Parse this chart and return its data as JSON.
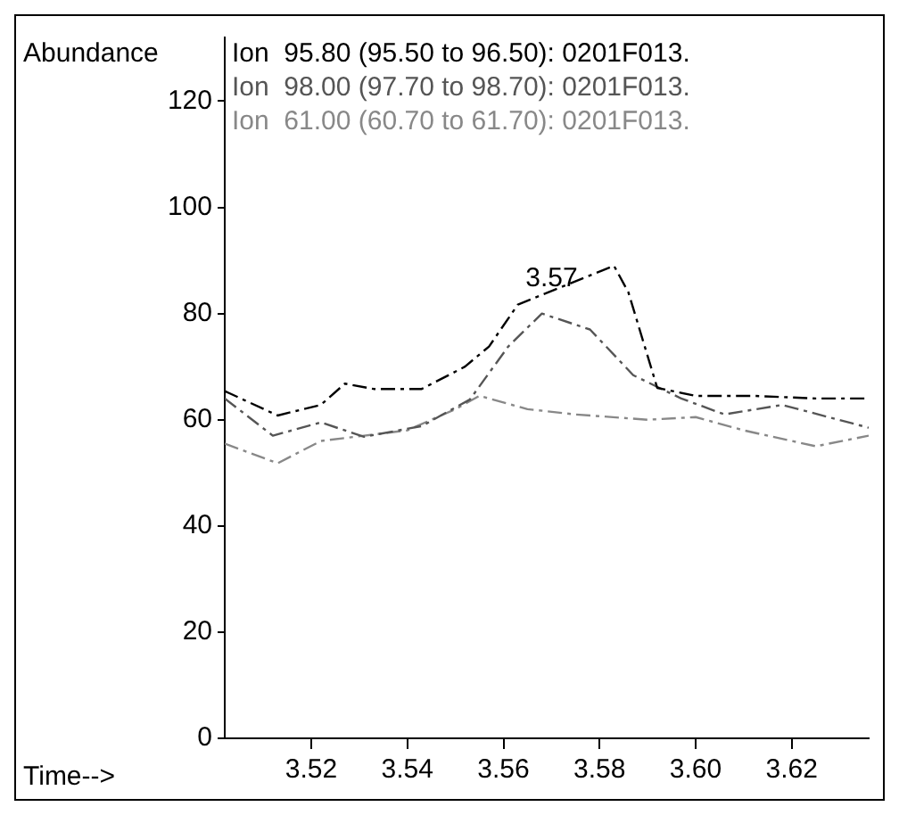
{
  "chart_data": {
    "type": "line",
    "ylabel": "Abundance",
    "xlabel": "Time-->",
    "xlim": [
      3.502,
      3.636
    ],
    "ylim": [
      0,
      132
    ],
    "xticks": [
      3.52,
      3.54,
      3.56,
      3.58,
      {
        "value": 3.6,
        "label": "3.60"
      },
      3.62
    ],
    "yticks": [
      0,
      20,
      40,
      60,
      80,
      100,
      120
    ],
    "grid": false,
    "legend": "top",
    "marker": "none",
    "line_style": "dashed",
    "annotations": [
      {
        "text": "3.57",
        "x": 3.57,
        "y": 84
      }
    ],
    "series": [
      {
        "name": "Ion  95.80 (95.50 to 96.50): 0201F013.",
        "color": "#000000",
        "x": [
          3.502,
          3.513,
          3.522,
          3.527,
          3.533,
          3.543,
          3.552,
          3.557,
          3.563,
          3.583,
          3.586,
          3.592,
          3.6,
          3.612,
          3.625,
          3.636
        ],
        "values": [
          65.4,
          60.8,
          62.8,
          66.8,
          65.8,
          65.8,
          70,
          73.8,
          81.7,
          89,
          84,
          66,
          64.5,
          64.5,
          64,
          64
        ]
      },
      {
        "name": "Ion  98.00 (97.70 to 98.70): 0201F013.",
        "color": "#555555",
        "x": [
          3.502,
          3.512,
          3.522,
          3.531,
          3.543,
          3.553,
          3.561,
          3.568,
          3.578,
          3.587,
          3.597,
          3.606,
          3.618,
          3.636
        ],
        "values": [
          64,
          57,
          59.5,
          56.8,
          58.8,
          63.8,
          73.8,
          80,
          77,
          68.4,
          64,
          61,
          62.8,
          58.5
        ]
      },
      {
        "name": "Ion  61.00 (60.70 to 61.70): 0201F013.",
        "color": "#888888",
        "x": [
          3.502,
          3.513,
          3.522,
          3.531,
          3.54,
          3.55,
          3.555,
          3.565,
          3.575,
          3.59,
          3.6,
          3.61,
          3.62,
          3.625,
          3.636
        ],
        "values": [
          55.5,
          51.8,
          56,
          57,
          58,
          62,
          64.5,
          62,
          61,
          60,
          60.5,
          58,
          56,
          55,
          57
        ]
      }
    ]
  }
}
